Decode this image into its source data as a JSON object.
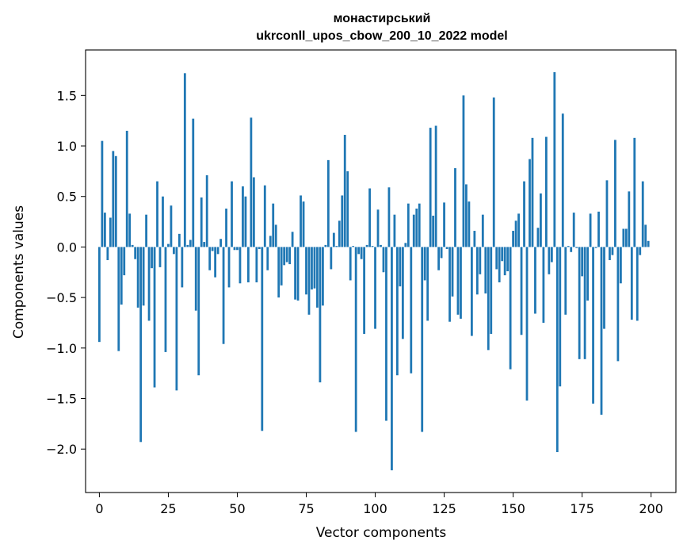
{
  "chart_data": {
    "type": "bar",
    "title_line1": "монастирський",
    "title_line2": "ukrconll_upos_cbow_200_10_2022 model",
    "xlabel": "Vector components",
    "ylabel": "Components values",
    "xlim": [
      -5,
      209
    ],
    "ylim": [
      -2.43,
      1.95
    ],
    "xticks": [
      0,
      25,
      50,
      75,
      100,
      125,
      150,
      175,
      200
    ],
    "yticks": [
      -2.0,
      -1.5,
      -1.0,
      -0.5,
      0.0,
      0.5,
      1.0,
      1.5
    ],
    "ytick_labels": [
      "−2.0",
      "−1.5",
      "−1.0",
      "−0.5",
      "0.0",
      "0.5",
      "1.0",
      "1.5"
    ],
    "grid": false,
    "bar_color": "#1f77b4",
    "values": [
      -0.94,
      1.05,
      0.34,
      -0.13,
      0.29,
      0.95,
      0.9,
      -1.03,
      -0.57,
      -0.28,
      1.15,
      0.33,
      0.02,
      -0.12,
      -0.6,
      -1.93,
      -0.58,
      0.32,
      -0.73,
      -0.21,
      -1.39,
      0.65,
      -0.2,
      0.5,
      -1.04,
      0.03,
      0.41,
      -0.07,
      -1.42,
      0.13,
      -0.4,
      1.72,
      0.02,
      0.07,
      1.27,
      -0.63,
      -1.27,
      0.49,
      0.05,
      0.71,
      -0.23,
      -0.04,
      -0.3,
      -0.07,
      0.08,
      -0.96,
      0.38,
      -0.4,
      0.65,
      -0.03,
      -0.03,
      -0.36,
      0.6,
      0.5,
      -0.35,
      1.28,
      0.69,
      -0.35,
      -0.02,
      -1.82,
      0.61,
      -0.23,
      0.11,
      0.43,
      0.22,
      -0.5,
      -0.38,
      -0.18,
      -0.15,
      -0.17,
      0.15,
      -0.52,
      -0.53,
      0.51,
      0.45,
      -0.47,
      -0.67,
      -0.42,
      -0.41,
      -0.6,
      -1.34,
      -0.58,
      0.02,
      0.86,
      -0.22,
      0.14,
      0.01,
      0.26,
      0.51,
      1.11,
      0.75,
      -0.33,
      0.01,
      -1.83,
      -0.07,
      -0.12,
      -0.86,
      0.02,
      0.58,
      0.01,
      -0.81,
      0.37,
      0.02,
      -0.25,
      -1.72,
      0.59,
      -2.21,
      0.32,
      -1.27,
      -0.39,
      -0.91,
      0.04,
      0.43,
      -1.25,
      0.32,
      0.38,
      0.43,
      -1.83,
      -0.33,
      -0.73,
      1.18,
      0.31,
      1.2,
      -0.23,
      -0.11,
      0.44,
      -0.02,
      -0.74,
      -0.49,
      0.78,
      -0.67,
      -0.71,
      1.5,
      0.62,
      0.45,
      -0.88,
      0.16,
      -0.47,
      -0.27,
      0.32,
      -0.46,
      -1.02,
      -0.86,
      1.48,
      -0.22,
      -0.35,
      -0.14,
      -0.28,
      -0.24,
      -1.21,
      0.16,
      0.26,
      0.33,
      -0.87,
      0.65,
      -1.52,
      0.87,
      1.08,
      -0.66,
      0.19,
      0.53,
      -0.75,
      1.09,
      -0.27,
      -0.15,
      1.73,
      -2.03,
      -1.38,
      1.32,
      -0.67,
      0.01,
      -0.05,
      0.34,
      -0.01,
      -1.11,
      -0.29,
      -1.11,
      -0.53,
      0.33,
      -1.55,
      -0.01,
      0.35,
      -1.66,
      -0.81,
      0.66,
      -0.13,
      -0.08,
      1.06,
      -1.13,
      -0.36,
      0.18,
      0.18,
      0.55,
      -0.72,
      1.08,
      -0.73,
      -0.08,
      0.65,
      0.22,
      0.06
    ]
  }
}
